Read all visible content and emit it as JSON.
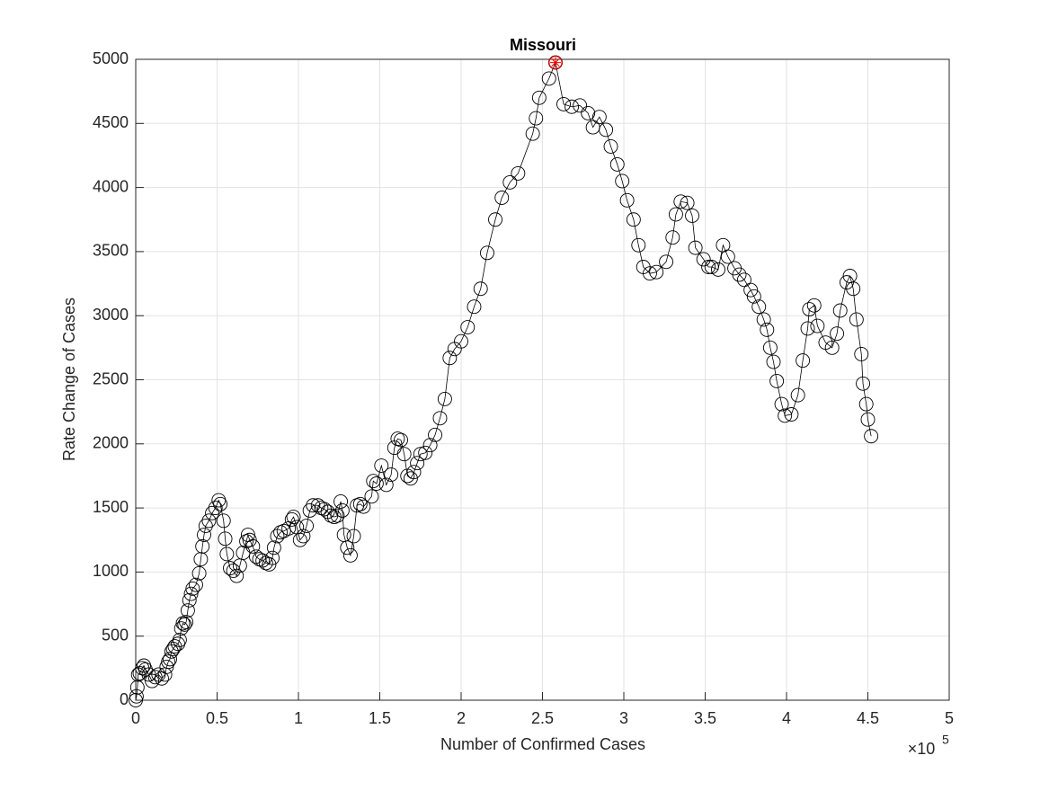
{
  "chart_data": {
    "type": "line-scatter",
    "title": "Missouri",
    "x_label": "Number of Confirmed Cases",
    "y_label": "Rate Change of Cases",
    "x_exponent": {
      "base": "×10",
      "power": "5"
    },
    "xlim": [
      0,
      500000
    ],
    "ylim": [
      0,
      5000
    ],
    "xticks": [
      0,
      {
        "value": 50000,
        "label": "0.5"
      },
      {
        "value": 100000,
        "label": "1"
      },
      {
        "value": 150000,
        "label": "1.5"
      },
      {
        "value": 200000,
        "label": "2"
      },
      {
        "value": 250000,
        "label": "2.5"
      },
      {
        "value": 300000,
        "label": "3"
      },
      {
        "value": 350000,
        "label": "3.5"
      },
      {
        "value": 400000,
        "label": "4"
      },
      {
        "value": 450000,
        "label": "4.5"
      },
      {
        "value": 500000,
        "label": "5"
      }
    ],
    "yticks": [
      0,
      500,
      1000,
      1500,
      2000,
      2500,
      3000,
      3500,
      4000,
      4500,
      5000
    ],
    "grid": true,
    "series": [
      {
        "color": "#000000",
        "marker": "circle",
        "line": true,
        "x": [
          0,
          500,
          1000,
          1500,
          2500,
          4000,
          5000,
          6000,
          8000,
          10000,
          12000,
          14000,
          16000,
          18000,
          19000,
          20000,
          21000,
          22000,
          23000,
          24000,
          26000,
          27000,
          28000,
          29000,
          30000,
          31000,
          32000,
          33000,
          34000,
          35000,
          37000,
          39000,
          40000,
          41000,
          42000,
          43000,
          45000,
          47000,
          49000,
          51000,
          52000,
          54000,
          55000,
          56000,
          58000,
          60000,
          62000,
          64000,
          66000,
          68000,
          69000,
          70000,
          72000,
          74000,
          76000,
          78000,
          80000,
          82000,
          84000,
          85000,
          87000,
          89000,
          91000,
          94000,
          96000,
          97000,
          99000,
          101000,
          103000,
          105000,
          107000,
          109000,
          112000,
          114000,
          116000,
          118000,
          120000,
          122000,
          124000,
          126000,
          127000,
          128000,
          130000,
          132000,
          134000,
          136000,
          138000,
          140000,
          145000,
          146000,
          148000,
          151000,
          154000,
          157000,
          159000,
          161000,
          163000,
          165000,
          167000,
          169000,
          171000,
          173000,
          175000,
          178000,
          181000,
          184000,
          187000,
          190000,
          193000,
          196000,
          200000,
          204000,
          208000,
          212000,
          216000,
          221000,
          225000,
          230000,
          235000,
          244000,
          246000,
          248000,
          254000,
          258000,
          263000,
          268000,
          273000,
          278000,
          281000,
          285000,
          289000,
          292000,
          296000,
          299000,
          302000,
          306000,
          309000,
          312000,
          316000,
          320000,
          326000,
          330000,
          332000,
          335000,
          339000,
          342000,
          344000,
          349000,
          352000,
          354000,
          358000,
          361000,
          364000,
          368000,
          371000,
          374000,
          378000,
          380000,
          383000,
          386000,
          388000,
          390000,
          392000,
          394000,
          397000,
          399000,
          403000,
          407000,
          410000,
          413000,
          414000,
          417000,
          419000,
          424000,
          428000,
          431000,
          433000,
          437000,
          439000,
          441000,
          443000,
          446000,
          447000,
          449000,
          450000,
          452000
        ],
        "y": [
          0,
          30,
          100,
          200,
          210,
          250,
          270,
          240,
          200,
          150,
          180,
          200,
          170,
          200,
          260,
          300,
          320,
          380,
          400,
          420,
          440,
          470,
          560,
          600,
          590,
          610,
          700,
          780,
          830,
          870,
          900,
          990,
          1100,
          1200,
          1290,
          1360,
          1400,
          1460,
          1500,
          1560,
          1530,
          1400,
          1260,
          1140,
          1030,
          1010,
          970,
          1050,
          1150,
          1240,
          1290,
          1250,
          1200,
          1120,
          1100,
          1090,
          1070,
          1060,
          1110,
          1190,
          1280,
          1310,
          1320,
          1340,
          1410,
          1430,
          1350,
          1250,
          1280,
          1360,
          1480,
          1520,
          1520,
          1500,
          1490,
          1470,
          1440,
          1430,
          1440,
          1550,
          1480,
          1290,
          1190,
          1130,
          1280,
          1520,
          1530,
          1510,
          1590,
          1710,
          1690,
          1830,
          1680,
          1760,
          1970,
          2040,
          2030,
          1920,
          1750,
          1730,
          1780,
          1850,
          1920,
          1930,
          1990,
          2070,
          2200,
          2350,
          2670,
          2740,
          2800,
          2910,
          3070,
          3210,
          3490,
          3750,
          3920,
          4040,
          4110,
          4420,
          4540,
          4700,
          4850,
          4975,
          4650,
          4630,
          4640,
          4580,
          4470,
          4550,
          4450,
          4320,
          4180,
          4050,
          3900,
          3750,
          3550,
          3380,
          3330,
          3340,
          3420,
          3610,
          3790,
          3890,
          3880,
          3780,
          3530,
          3440,
          3380,
          3380,
          3360,
          3550,
          3460,
          3370,
          3320,
          3280,
          3200,
          3150,
          3070,
          2970,
          2890,
          2750,
          2640,
          2490,
          2310,
          2220,
          2230,
          2380,
          2650,
          2900,
          3050,
          3080,
          2920,
          2790,
          2750,
          2860,
          3040,
          3260,
          3310,
          3210,
          2970,
          2700,
          2470,
          2310,
          2190,
          2060
        ]
      },
      {
        "color": "#ff0000",
        "marker": "star",
        "line": false,
        "x": [
          258000
        ],
        "y": [
          4975
        ]
      }
    ]
  }
}
